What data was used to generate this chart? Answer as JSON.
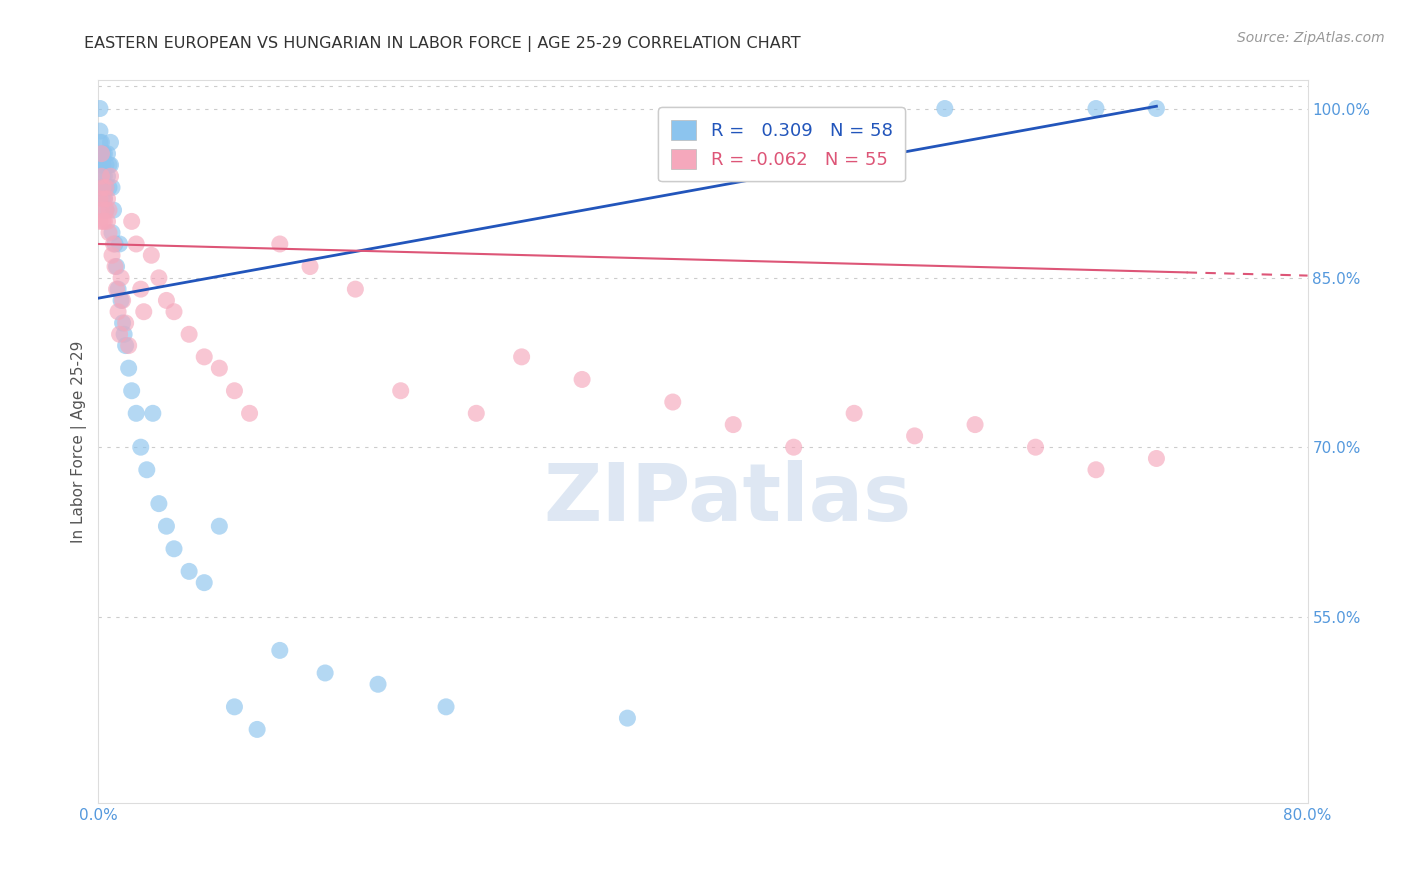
{
  "title": "EASTERN EUROPEAN VS HUNGARIAN IN LABOR FORCE | AGE 25-29 CORRELATION CHART",
  "source": "Source: ZipAtlas.com",
  "ylabel": "In Labor Force | Age 25-29",
  "xmin": 0.0,
  "xmax": 0.8,
  "ymin": 0.385,
  "ymax": 1.025,
  "right_yticks": [
    0.55,
    0.7,
    0.85,
    1.0
  ],
  "right_yticklabels": [
    "55.0%",
    "70.0%",
    "85.0%",
    "100.0%"
  ],
  "bottom_xticks": [
    0.0,
    0.1,
    0.2,
    0.3,
    0.4,
    0.5,
    0.6,
    0.7,
    0.8
  ],
  "bottom_xticklabels": [
    "0.0%",
    "",
    "",
    "",
    "",
    "",
    "",
    "",
    "80.0%"
  ],
  "blue_R": 0.309,
  "blue_N": 58,
  "pink_R": -0.062,
  "pink_N": 55,
  "blue_color": "#8CC4EE",
  "pink_color": "#F5A8BC",
  "blue_line_color": "#2255BB",
  "pink_line_color": "#DD5577",
  "blue_line_x0": 0.0,
  "blue_line_y0": 0.832,
  "blue_line_x1": 0.7,
  "blue_line_y1": 1.002,
  "pink_line_x0": 0.0,
  "pink_line_y0": 0.88,
  "pink_line_x1": 0.8,
  "pink_line_y1": 0.852,
  "blue_x": [
    0.001,
    0.001,
    0.001,
    0.001,
    0.001,
    0.002,
    0.002,
    0.002,
    0.002,
    0.003,
    0.003,
    0.003,
    0.003,
    0.004,
    0.004,
    0.004,
    0.005,
    0.005,
    0.005,
    0.006,
    0.006,
    0.007,
    0.007,
    0.008,
    0.008,
    0.009,
    0.009,
    0.01,
    0.011,
    0.012,
    0.013,
    0.014,
    0.015,
    0.016,
    0.017,
    0.018,
    0.02,
    0.022,
    0.025,
    0.028,
    0.032,
    0.036,
    0.04,
    0.045,
    0.05,
    0.06,
    0.07,
    0.08,
    0.09,
    0.105,
    0.12,
    0.15,
    0.185,
    0.23,
    0.35,
    0.56,
    0.66,
    0.7
  ],
  "blue_y": [
    1.0,
    0.98,
    0.97,
    0.95,
    0.93,
    0.97,
    0.96,
    0.95,
    0.93,
    0.96,
    0.95,
    0.94,
    0.92,
    0.96,
    0.94,
    0.92,
    0.95,
    0.93,
    0.91,
    0.96,
    0.94,
    0.95,
    0.93,
    0.97,
    0.95,
    0.93,
    0.89,
    0.91,
    0.88,
    0.86,
    0.84,
    0.88,
    0.83,
    0.81,
    0.8,
    0.79,
    0.77,
    0.75,
    0.73,
    0.7,
    0.68,
    0.73,
    0.65,
    0.63,
    0.61,
    0.59,
    0.58,
    0.63,
    0.47,
    0.45,
    0.52,
    0.5,
    0.49,
    0.47,
    0.46,
    1.0,
    1.0,
    1.0
  ],
  "pink_x": [
    0.001,
    0.001,
    0.002,
    0.002,
    0.002,
    0.003,
    0.003,
    0.004,
    0.004,
    0.005,
    0.005,
    0.006,
    0.006,
    0.007,
    0.007,
    0.008,
    0.009,
    0.01,
    0.011,
    0.012,
    0.013,
    0.014,
    0.015,
    0.016,
    0.018,
    0.02,
    0.022,
    0.025,
    0.028,
    0.03,
    0.035,
    0.04,
    0.045,
    0.05,
    0.06,
    0.07,
    0.08,
    0.09,
    0.1,
    0.12,
    0.14,
    0.17,
    0.2,
    0.25,
    0.28,
    0.32,
    0.38,
    0.42,
    0.46,
    0.5,
    0.54,
    0.58,
    0.62,
    0.66,
    0.7
  ],
  "pink_y": [
    0.92,
    0.9,
    0.96,
    0.94,
    0.91,
    0.93,
    0.9,
    0.92,
    0.9,
    0.93,
    0.91,
    0.92,
    0.9,
    0.91,
    0.89,
    0.94,
    0.87,
    0.88,
    0.86,
    0.84,
    0.82,
    0.8,
    0.85,
    0.83,
    0.81,
    0.79,
    0.9,
    0.88,
    0.84,
    0.82,
    0.87,
    0.85,
    0.83,
    0.82,
    0.8,
    0.78,
    0.77,
    0.75,
    0.73,
    0.88,
    0.86,
    0.84,
    0.75,
    0.73,
    0.78,
    0.76,
    0.74,
    0.72,
    0.7,
    0.73,
    0.71,
    0.72,
    0.7,
    0.68,
    0.69
  ],
  "watermark": "ZIPatlas",
  "background_color": "#FFFFFF",
  "grid_color": "#CCCCCC",
  "title_color": "#333333",
  "axis_color": "#5599DD",
  "right_axis_color": "#5599DD"
}
